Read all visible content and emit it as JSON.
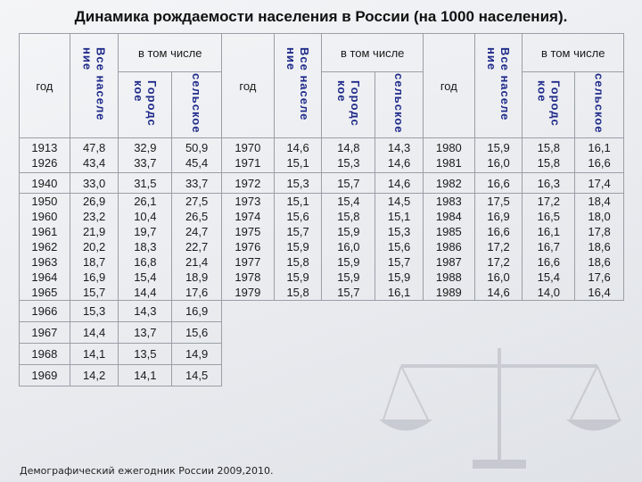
{
  "title": "Динамика рождаемости населения в России (на 1000 населения).",
  "headers": {
    "year": "год",
    "total": "Все населе\nние",
    "including": "в том числе",
    "urban": "Городс\nкое",
    "rural": "сельское"
  },
  "rows": [
    {
      "y1": "1913\n1926",
      "t1": "47,8\n43,4",
      "u1": "32,9\n33,7",
      "r1": "50,9\n45,4",
      "y2": "1970\n1971",
      "t2": "14,6\n15,1",
      "u2": "14,8\n15,3",
      "r2": "14,3\n14,6",
      "y3": "1980\n1981",
      "t3": "15,9\n16,0",
      "u3": "15,8\n15,8",
      "r3": "16,1\n16,6"
    },
    {
      "y1": "1940",
      "t1": "33,0",
      "u1": "31,5",
      "r1": "33,7",
      "y2": "1972",
      "t2": "15,3",
      "u2": "15,7",
      "r2": "14,6",
      "y3": "1982",
      "t3": "16,6",
      "u3": "16,3",
      "r3": "17,4"
    },
    {
      "y1": "1950\n1960\n1961\n1962\n1963\n1964\n1965",
      "t1": "26,9\n23,2\n21,9\n20,2\n18,7\n16,9\n15,7",
      "u1": "26,1\n10,4\n19,7\n18,3\n16,8\n15,4\n14,4",
      "r1": "27,5\n26,5\n24,7\n22,7\n21,4\n18,9\n17,6",
      "y2": "1973\n1974\n1975\n1976\n1977\n1978\n1979",
      "t2": "15,1\n15,6\n15,7\n15,9\n15,8\n15,9\n15,8",
      "u2": "15,4\n15,8\n15,9\n16,0\n15,9\n15,9\n15,7",
      "r2": "14,5\n15,1\n15,3\n15,6\n15,7\n15,9\n16,1",
      "y3": "1983\n1984\n1985\n1986\n1987\n1988\n1989",
      "t3": "17,5\n16,9\n16,6\n17,2\n17,2\n16,0\n14,6",
      "u3": "17,2\n16,5\n16,1\n16,7\n16,6\n15,4\n14,0",
      "r3": "18,4\n18,0\n17,8\n18,6\n18,6\n17,6\n16,4"
    },
    {
      "y1": "1966",
      "t1": "15,3",
      "u1": "14,3",
      "r1": "16,9"
    },
    {
      "y1": "1967",
      "t1": "14,4",
      "u1": "13,7",
      "r1": "15,6"
    },
    {
      "y1": "1968",
      "t1": "14,1",
      "u1": "13,5",
      "r1": "14,9"
    },
    {
      "y1": "1969",
      "t1": "14,2",
      "u1": "14,1",
      "r1": "14,5"
    }
  ],
  "source": "Демографический ежегодник России 2009,2010."
}
